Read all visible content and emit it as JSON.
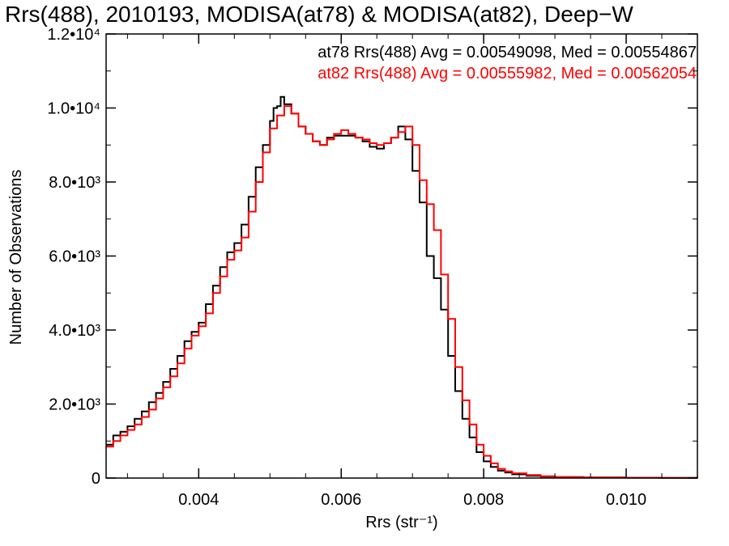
{
  "chart_data": {
    "type": "line",
    "title": "Rrs(488), 2010193, MODISA(at78) & MODISA(at82), Deep−W",
    "xlabel": "Rrs (str⁻¹)",
    "ylabel": "Number of Observations",
    "xlim": [
      0.0027,
      0.011
    ],
    "ylim": [
      0,
      12000
    ],
    "x_ticks": [
      {
        "value": 0.004,
        "label": "0.004"
      },
      {
        "value": 0.006,
        "label": "0.006"
      },
      {
        "value": 0.008,
        "label": "0.008"
      },
      {
        "value": 0.01,
        "label": "0.010"
      }
    ],
    "y_ticks": [
      {
        "value": 0,
        "label": "0"
      },
      {
        "value": 2000,
        "label": "2.0•10³"
      },
      {
        "value": 4000,
        "label": "4.0•10³"
      },
      {
        "value": 6000,
        "label": "6.0•10³"
      },
      {
        "value": 8000,
        "label": "8.0•10³"
      },
      {
        "value": 10000,
        "label": "1.0•10⁴"
      },
      {
        "value": 12000,
        "label": "1.2•10⁴"
      }
    ],
    "grid": false,
    "legend_position": "top-right",
    "annotations": [
      {
        "text": "at78 Rrs(488) Avg = 0.00549098, Med = 0.00554867",
        "color": "#000000"
      },
      {
        "text": "at82 Rrs(488) Avg = 0.00555982, Med = 0.00562054",
        "color": "#ff0000"
      }
    ],
    "series": [
      {
        "color": "#000000",
        "points": [
          [
            0.0027,
            900
          ],
          [
            0.0028,
            1150
          ],
          [
            0.0029,
            1250
          ],
          [
            0.003,
            1400
          ],
          [
            0.0031,
            1600
          ],
          [
            0.0032,
            1800
          ],
          [
            0.0033,
            2050
          ],
          [
            0.0034,
            2300
          ],
          [
            0.0035,
            2600
          ],
          [
            0.0036,
            2950
          ],
          [
            0.0037,
            3300
          ],
          [
            0.0038,
            3700
          ],
          [
            0.0039,
            3950
          ],
          [
            0.004,
            4200
          ],
          [
            0.0041,
            4700
          ],
          [
            0.0042,
            5200
          ],
          [
            0.0043,
            5700
          ],
          [
            0.0044,
            6100
          ],
          [
            0.0045,
            6350
          ],
          [
            0.0046,
            6850
          ],
          [
            0.0047,
            7600
          ],
          [
            0.0048,
            8400
          ],
          [
            0.0049,
            9000
          ],
          [
            0.005,
            9650
          ],
          [
            0.00505,
            10000
          ],
          [
            0.0051,
            10050
          ],
          [
            0.00515,
            10300
          ],
          [
            0.0052,
            10100
          ],
          [
            0.0053,
            9850
          ],
          [
            0.0054,
            9500
          ],
          [
            0.0055,
            9300
          ],
          [
            0.0056,
            9100
          ],
          [
            0.0057,
            9000
          ],
          [
            0.0058,
            9200
          ],
          [
            0.0059,
            9250
          ],
          [
            0.006,
            9250
          ],
          [
            0.0061,
            9250
          ],
          [
            0.0062,
            9200
          ],
          [
            0.0063,
            9100
          ],
          [
            0.0064,
            8950
          ],
          [
            0.0065,
            8900
          ],
          [
            0.0066,
            9050
          ],
          [
            0.0067,
            9200
          ],
          [
            0.0068,
            9500
          ],
          [
            0.0069,
            9150
          ],
          [
            0.007,
            8300
          ],
          [
            0.0071,
            7450
          ],
          [
            0.0072,
            6000
          ],
          [
            0.0073,
            5400
          ],
          [
            0.0074,
            4550
          ],
          [
            0.0075,
            3300
          ],
          [
            0.0076,
            2350
          ],
          [
            0.0077,
            1600
          ],
          [
            0.0078,
            1100
          ],
          [
            0.0079,
            700
          ],
          [
            0.008,
            450
          ],
          [
            0.0081,
            300
          ],
          [
            0.0082,
            200
          ],
          [
            0.0083,
            150
          ],
          [
            0.0084,
            100
          ],
          [
            0.0086,
            60
          ],
          [
            0.0088,
            40
          ],
          [
            0.009,
            25
          ],
          [
            0.0094,
            15
          ],
          [
            0.01,
            8
          ],
          [
            0.0105,
            4
          ],
          [
            0.011,
            2
          ]
        ]
      },
      {
        "color": "#ff0000",
        "points": [
          [
            0.0027,
            850
          ],
          [
            0.0028,
            1000
          ],
          [
            0.0029,
            1150
          ],
          [
            0.003,
            1300
          ],
          [
            0.0031,
            1450
          ],
          [
            0.0032,
            1650
          ],
          [
            0.0033,
            1850
          ],
          [
            0.0034,
            2150
          ],
          [
            0.0035,
            2450
          ],
          [
            0.0036,
            2750
          ],
          [
            0.0037,
            3100
          ],
          [
            0.0038,
            3500
          ],
          [
            0.0039,
            3850
          ],
          [
            0.004,
            4100
          ],
          [
            0.0041,
            4450
          ],
          [
            0.0042,
            5000
          ],
          [
            0.0043,
            5450
          ],
          [
            0.0044,
            5900
          ],
          [
            0.0045,
            6150
          ],
          [
            0.0046,
            6500
          ],
          [
            0.0047,
            7200
          ],
          [
            0.0048,
            8000
          ],
          [
            0.0049,
            8800
          ],
          [
            0.005,
            9450
          ],
          [
            0.0051,
            9800
          ],
          [
            0.0052,
            10050
          ],
          [
            0.0053,
            9850
          ],
          [
            0.0054,
            9500
          ],
          [
            0.0055,
            9300
          ],
          [
            0.0056,
            9100
          ],
          [
            0.0057,
            9000
          ],
          [
            0.0058,
            9150
          ],
          [
            0.0059,
            9300
          ],
          [
            0.006,
            9400
          ],
          [
            0.0061,
            9300
          ],
          [
            0.0062,
            9200
          ],
          [
            0.0063,
            9150
          ],
          [
            0.0064,
            9050
          ],
          [
            0.0065,
            9000
          ],
          [
            0.0066,
            9050
          ],
          [
            0.0067,
            9200
          ],
          [
            0.0068,
            9350
          ],
          [
            0.0069,
            9500
          ],
          [
            0.007,
            9000
          ],
          [
            0.0071,
            8050
          ],
          [
            0.0072,
            7400
          ],
          [
            0.0073,
            6700
          ],
          [
            0.0074,
            5500
          ],
          [
            0.0075,
            4300
          ],
          [
            0.0076,
            3000
          ],
          [
            0.0077,
            2100
          ],
          [
            0.0078,
            1450
          ],
          [
            0.0079,
            900
          ],
          [
            0.008,
            600
          ],
          [
            0.0081,
            400
          ],
          [
            0.0082,
            250
          ],
          [
            0.0083,
            180
          ],
          [
            0.0084,
            130
          ],
          [
            0.0086,
            80
          ],
          [
            0.0088,
            50
          ],
          [
            0.009,
            30
          ],
          [
            0.0094,
            18
          ],
          [
            0.01,
            10
          ],
          [
            0.0105,
            5
          ],
          [
            0.011,
            3
          ]
        ]
      }
    ]
  }
}
